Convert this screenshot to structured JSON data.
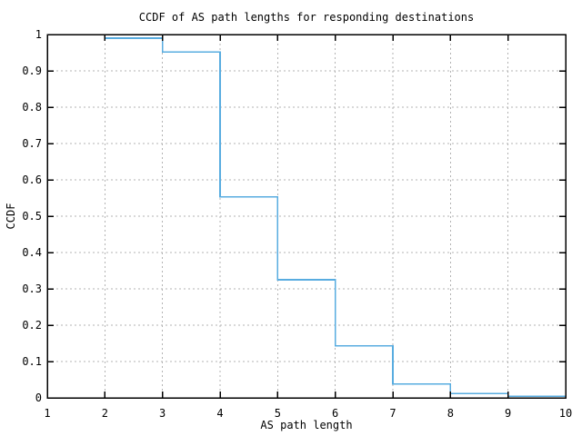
{
  "chart_data": {
    "type": "line",
    "subtype": "step-ccdf",
    "title": "CCDF of AS path lengths for responding destinations",
    "xlabel": "AS path length",
    "ylabel": "CCDF",
    "xlim": [
      1,
      10
    ],
    "ylim": [
      0,
      1
    ],
    "x_ticks": [
      1,
      2,
      3,
      4,
      5,
      6,
      7,
      8,
      9,
      10
    ],
    "x_tick_labels": [
      "1",
      "2",
      "3",
      "4",
      "5",
      "6",
      "7",
      "8",
      "9",
      "10"
    ],
    "y_ticks": [
      0,
      0.1,
      0.2,
      0.3,
      0.4,
      0.5,
      0.6,
      0.7,
      0.8,
      0.9,
      1
    ],
    "y_tick_labels": [
      "0",
      "0.1",
      "0.2",
      "0.3",
      "0.4",
      "0.5",
      "0.6",
      "0.7",
      "0.8",
      "0.9",
      "1"
    ],
    "grid": true,
    "legend_position": "none",
    "colors": {
      "line": "#58ace0",
      "grid": "#b3b3b3",
      "frame": "#000000",
      "text": "#000000",
      "background": "#ffffff"
    },
    "series": [
      {
        "name": "CCDF",
        "start_point": [
          2,
          1.0
        ],
        "step_x": [
          2,
          3,
          4,
          5,
          6,
          7,
          8,
          9
        ],
        "step_y": [
          0.99,
          0.952,
          0.553,
          0.325,
          0.143,
          0.038,
          0.012,
          0.004
        ],
        "end_x": 10
      }
    ]
  }
}
